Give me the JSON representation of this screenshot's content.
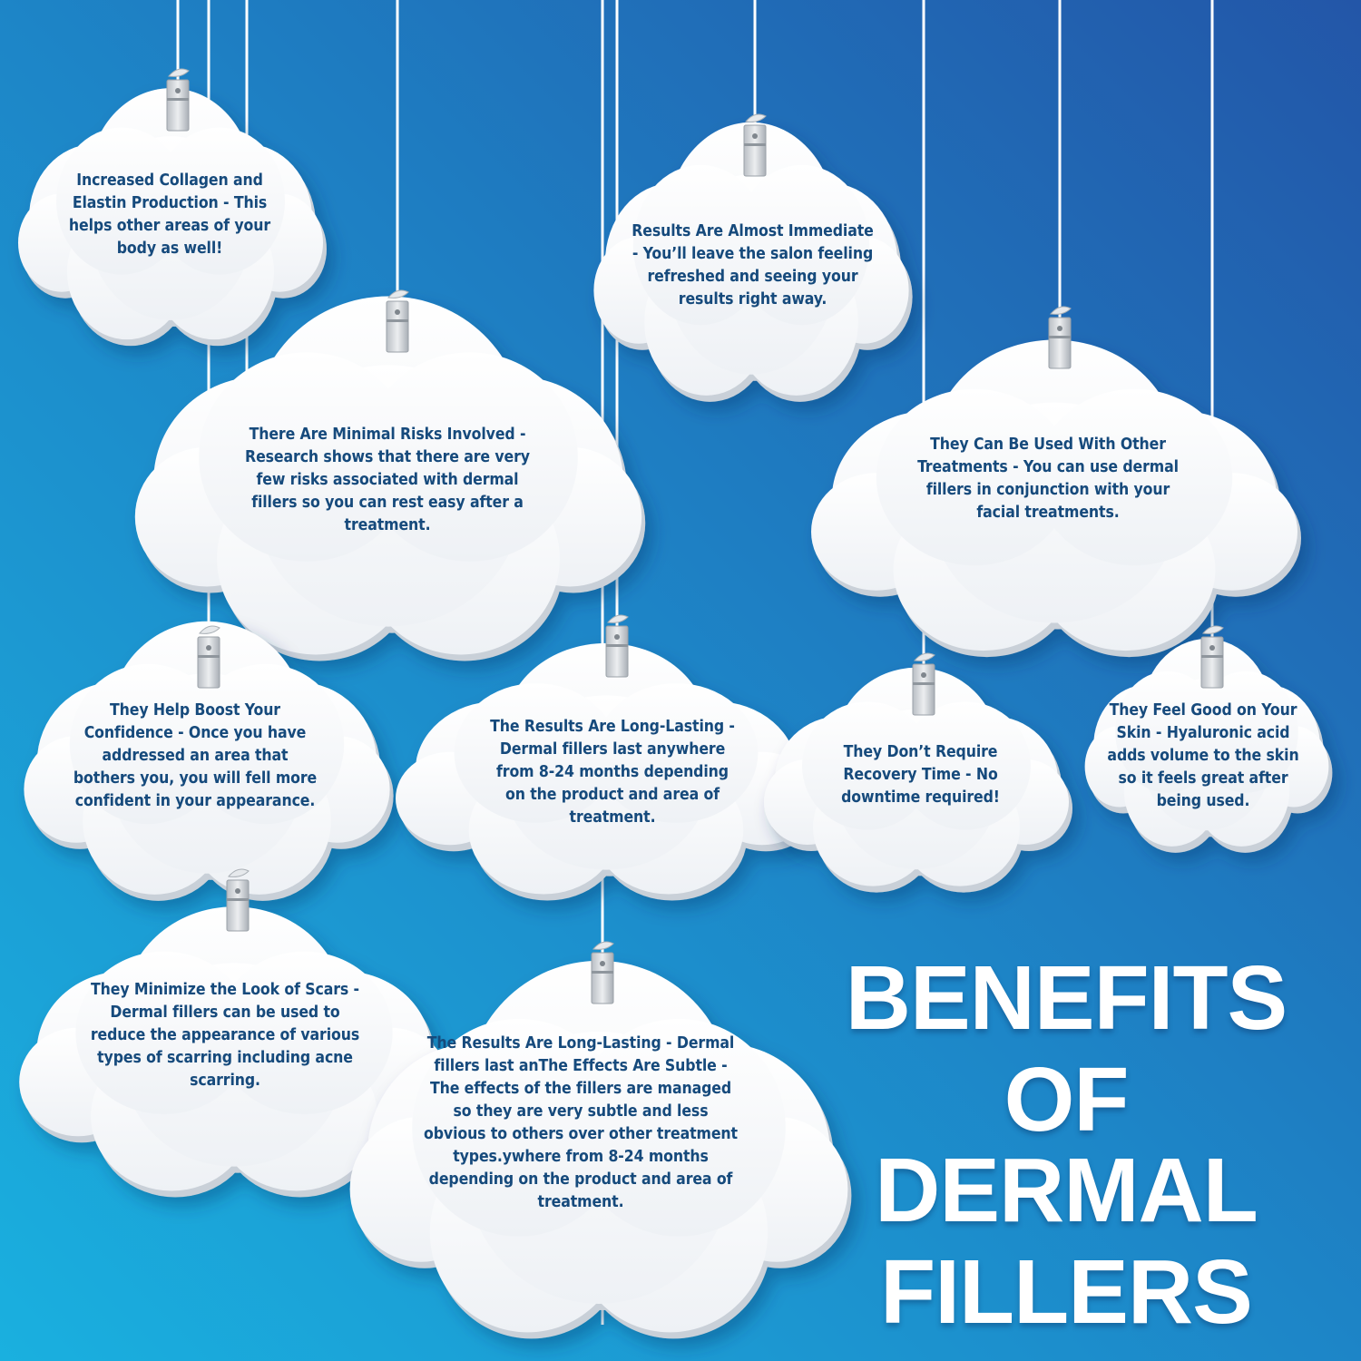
{
  "title_lines": [
    "BENEFITS",
    "OF DERMAL",
    "FILLERS"
  ],
  "clouds": [
    {
      "text": "Increased Collagen and Elastin Production - This helps other areas of your body as well!"
    },
    {
      "text": "Results Are Almost Immediate - You’ll leave the salon feeling refreshed and seeing your results right away."
    },
    {
      "text": "There Are Minimal Risks Involved - Research shows that there are very few risks associated with dermal fillers so you can rest easy after a treatment."
    },
    {
      "text": "They Can Be Used With Other Treatments - You can use dermal fillers in conjunction with your facial treatments."
    },
    {
      "text": "They Help Boost Your Confidence - Once you have addressed an area that bothers you, you will fell more confident in your appearance."
    },
    {
      "text": "The Results Are Long-Lasting - Dermal fillers last anywhere from 8-24 months depending on the product and area of treatment."
    },
    {
      "text": "They Don’t Require Recovery Time - No downtime required!"
    },
    {
      "text": "They Feel Good on Your Skin - Hyaluronic acid adds volume to the skin so it feels great after being used."
    },
    {
      "text": "They Minimize the Look of Scars - Dermal fillers can be used to reduce the appearance of various types of scarring including acne scarring."
    },
    {
      "text": "The Results Are Long-Lasting - Dermal fillers last anThe Effects Are Subtle - The effects of the fillers are managed so they are very subtle and less obvious to others over other treatment types.ywhere from 8-24 months depending on the product and area of treatment."
    }
  ]
}
